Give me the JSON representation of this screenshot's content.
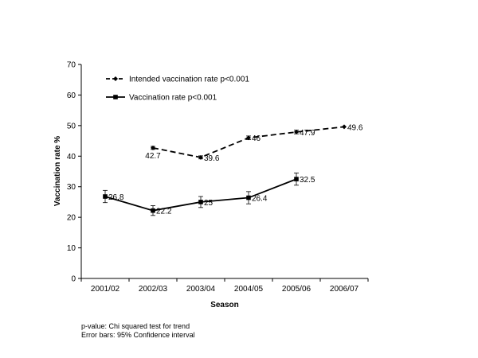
{
  "chart_data": {
    "type": "line",
    "title": "",
    "xlabel": "Season",
    "ylabel": "Vaccination rate %",
    "ylim": [
      0,
      70
    ],
    "yticks": [
      "0",
      "10",
      "20",
      "30",
      "40",
      "50",
      "60",
      "70"
    ],
    "categories": [
      "2001/02",
      "2002/03",
      "2003/04",
      "2004/05",
      "2005/06",
      "2006/07"
    ],
    "grid": false,
    "legend": "top-left",
    "series": [
      {
        "name": "Intended vaccination rate p<0.001",
        "line_style": "dashed",
        "marker": "diamond",
        "color": "#000000",
        "values": [
          null,
          42.7,
          39.6,
          46,
          47.9,
          49.6
        ],
        "labels": [
          "",
          "42.7",
          "39.6",
          "46",
          "47.9",
          "49.6"
        ],
        "error": [
          null,
          0.5,
          0.5,
          0.6,
          0.6,
          null
        ]
      },
      {
        "name": "Vaccination rate p<0.001",
        "line_style": "solid",
        "marker": "square",
        "color": "#000000",
        "values": [
          26.8,
          22.2,
          25,
          26.4,
          32.5,
          null
        ],
        "labels": [
          "26.8",
          "22.2",
          "25",
          "26.4",
          "32.5",
          ""
        ],
        "error": [
          2.0,
          1.6,
          1.8,
          2.0,
          2.0,
          null
        ]
      }
    ]
  },
  "footnotes": [
    "p-value: Chi squared test for trend",
    "Error bars: 95% Confidence interval"
  ]
}
